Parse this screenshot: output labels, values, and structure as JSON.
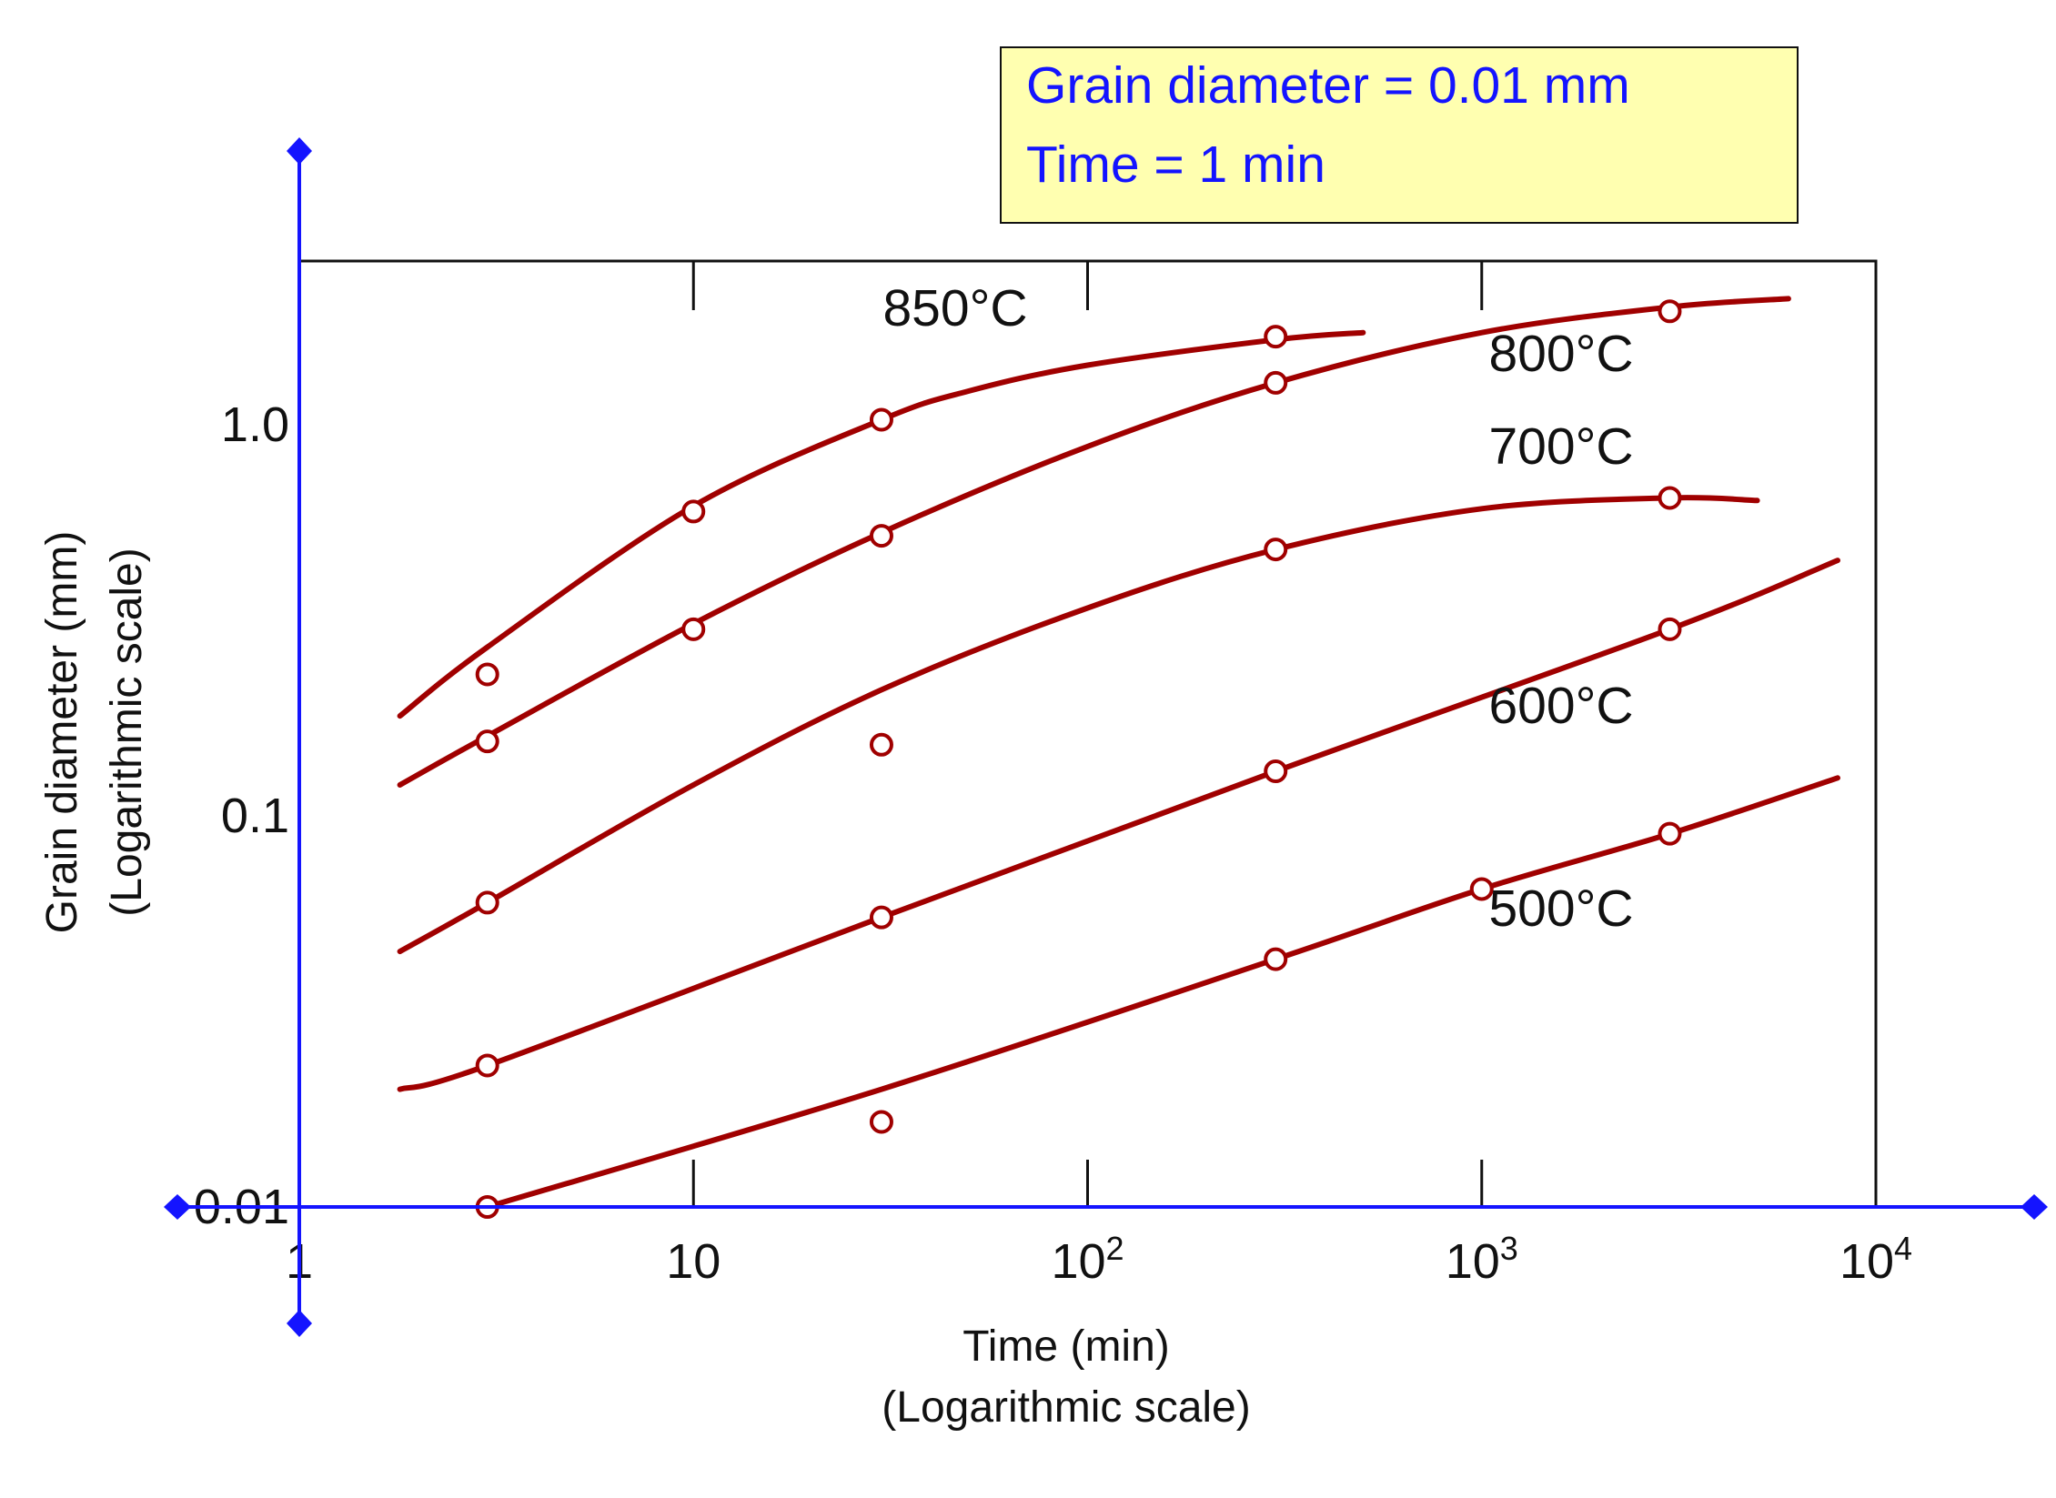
{
  "colors": {
    "curve": "#a00000",
    "marker_stroke": "#a00000",
    "frame": "#111111",
    "cursor_axis": "#1414ff",
    "infobox_fill": "#ffffb0",
    "infobox_text": "#1414ff"
  },
  "infobox": {
    "line1": "Grain diameter = 0.01 mm",
    "line2": "Time = 1 min"
  },
  "chart_data": {
    "type": "line",
    "x_scale": "log",
    "y_scale": "log",
    "xlim": [
      1,
      10000
    ],
    "ylim": [
      0.01,
      2.6
    ],
    "grid": false,
    "xlabel": "Time (min)",
    "xlabel2": "(Logarithmic scale)",
    "ylabel": "Grain diameter (mm)",
    "ylabel2": "(Logarithmic scale)",
    "xticks": [
      {
        "value": 1,
        "base": "1",
        "sup": ""
      },
      {
        "value": 10,
        "base": "10",
        "sup": ""
      },
      {
        "value": 100,
        "base": "10",
        "sup": "2"
      },
      {
        "value": 1000,
        "base": "10",
        "sup": "3"
      },
      {
        "value": 10000,
        "base": "10",
        "sup": "4"
      }
    ],
    "yticks": [
      {
        "value": 0.01,
        "label": "0.01"
      },
      {
        "value": 0.1,
        "label": "0.1"
      },
      {
        "value": 1.0,
        "label": "1.0"
      }
    ],
    "series": [
      {
        "name": "850°C",
        "curve_x": [
          1.8,
          3,
          10,
          30,
          50,
          100,
          300,
          500
        ],
        "curve_y": [
          0.18,
          0.27,
          0.62,
          1.03,
          1.22,
          1.42,
          1.65,
          1.72
        ],
        "points_x": [
          3,
          10,
          30,
          300
        ],
        "points_y": [
          0.23,
          0.6,
          1.03,
          1.68
        ]
      },
      {
        "name": "800°C",
        "curve_x": [
          1.8,
          3,
          10,
          30,
          100,
          300,
          1000,
          3000,
          6000
        ],
        "curve_y": [
          0.12,
          0.16,
          0.31,
          0.53,
          0.88,
          1.28,
          1.72,
          2.0,
          2.1
        ],
        "points_x": [
          3,
          10,
          30,
          300,
          3000
        ],
        "points_y": [
          0.155,
          0.3,
          0.52,
          1.28,
          1.95
        ]
      },
      {
        "name": "700°C",
        "curve_x": [
          1.8,
          3,
          10,
          30,
          100,
          300,
          1000,
          3000,
          5000
        ],
        "curve_y": [
          0.045,
          0.06,
          0.12,
          0.21,
          0.34,
          0.48,
          0.61,
          0.65,
          0.64
        ],
        "points_x": [
          3,
          30,
          300,
          3000
        ],
        "points_y": [
          0.06,
          0.152,
          0.48,
          0.65
        ]
      },
      {
        "name": "600°C",
        "curve_x": [
          1.8,
          3,
          30,
          300,
          3000,
          8000
        ],
        "curve_y": [
          0.02,
          0.023,
          0.055,
          0.13,
          0.3,
          0.45
        ],
        "points_x": [
          3,
          30,
          300,
          3000
        ],
        "points_y": [
          0.023,
          0.055,
          0.13,
          0.3
        ]
      },
      {
        "name": "500°C",
        "curve_x": [
          3,
          30,
          300,
          1000,
          3000,
          8000
        ],
        "curve_y": [
          0.01,
          0.02,
          0.043,
          0.065,
          0.09,
          0.125
        ],
        "points_x": [
          3,
          30,
          300,
          1000,
          3000
        ],
        "points_y": [
          0.01,
          0.0165,
          0.043,
          0.065,
          0.09
        ]
      }
    ]
  }
}
